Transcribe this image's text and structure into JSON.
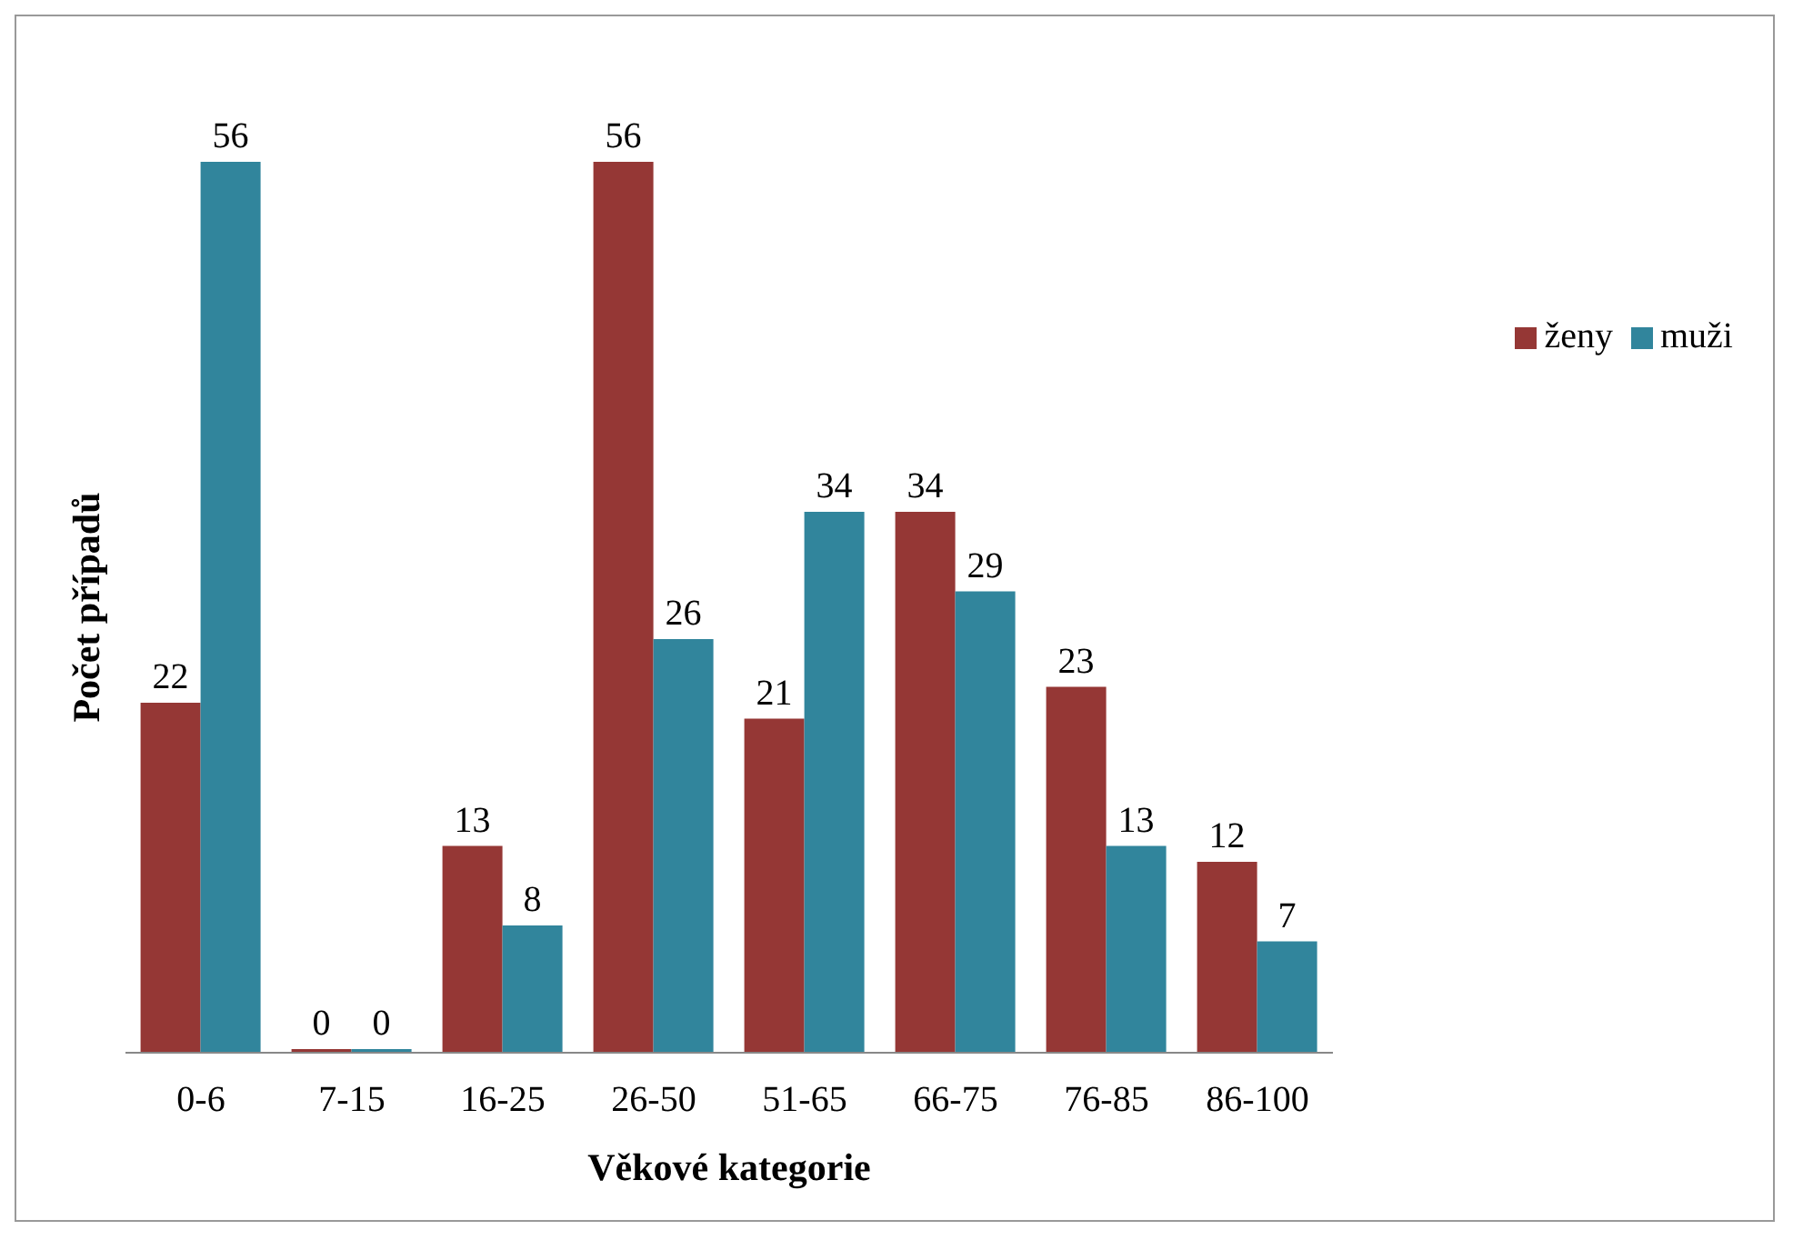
{
  "chart_data": {
    "type": "bar",
    "xlabel": "Věkové kategorie",
    "ylabel": "Počet případů",
    "categories": [
      "0-6",
      "7-15",
      "16-25",
      "26-50",
      "51-65",
      "66-75",
      "76-85",
      "86-100"
    ],
    "series": [
      {
        "name": "ženy",
        "color": "#953735",
        "values": [
          22,
          0,
          13,
          56,
          21,
          34,
          23,
          12
        ]
      },
      {
        "name": "muži",
        "color": "#31859c",
        "values": [
          56,
          0,
          8,
          26,
          34,
          29,
          13,
          7
        ]
      }
    ],
    "data_labels": true,
    "legend": "right",
    "grid": false
  }
}
